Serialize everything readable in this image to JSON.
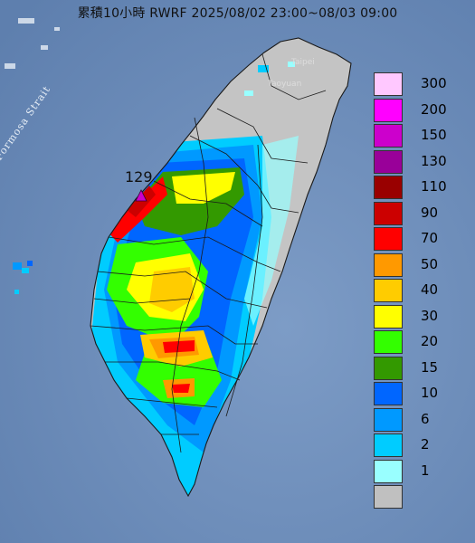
{
  "title": "累積10小時 RWRF 2025/08/02 23:00~08/03 09:00",
  "labels": {
    "strait": "Formosa Strait",
    "taipei": "Taipei",
    "taoyuan": "Taoyuan",
    "max_value": "129"
  },
  "legend": {
    "items": [
      {
        "label": "300",
        "color": "#ffc8ff"
      },
      {
        "label": "200",
        "color": "#ff00ff"
      },
      {
        "label": "150",
        "color": "#cc00cc"
      },
      {
        "label": "130",
        "color": "#990099"
      },
      {
        "label": "110",
        "color": "#990000"
      },
      {
        "label": "90",
        "color": "#cc0000"
      },
      {
        "label": "70",
        "color": "#ff0000"
      },
      {
        "label": "50",
        "color": "#ff9900"
      },
      {
        "label": "40",
        "color": "#ffcc00"
      },
      {
        "label": "30",
        "color": "#ffff00"
      },
      {
        "label": "20",
        "color": "#33ff00"
      },
      {
        "label": "15",
        "color": "#339900"
      },
      {
        "label": "10",
        "color": "#0066ff"
      },
      {
        "label": "6",
        "color": "#0099ff"
      },
      {
        "label": "2",
        "color": "#00ccff"
      },
      {
        "label": "1",
        "color": "#99ffff"
      },
      {
        "label": "",
        "color": "#c0c0c0"
      }
    ]
  },
  "colors": {
    "sea": "#6f8fb8",
    "no_rain_land": "#c4c4c4",
    "max_marker": "#cc00cc"
  }
}
